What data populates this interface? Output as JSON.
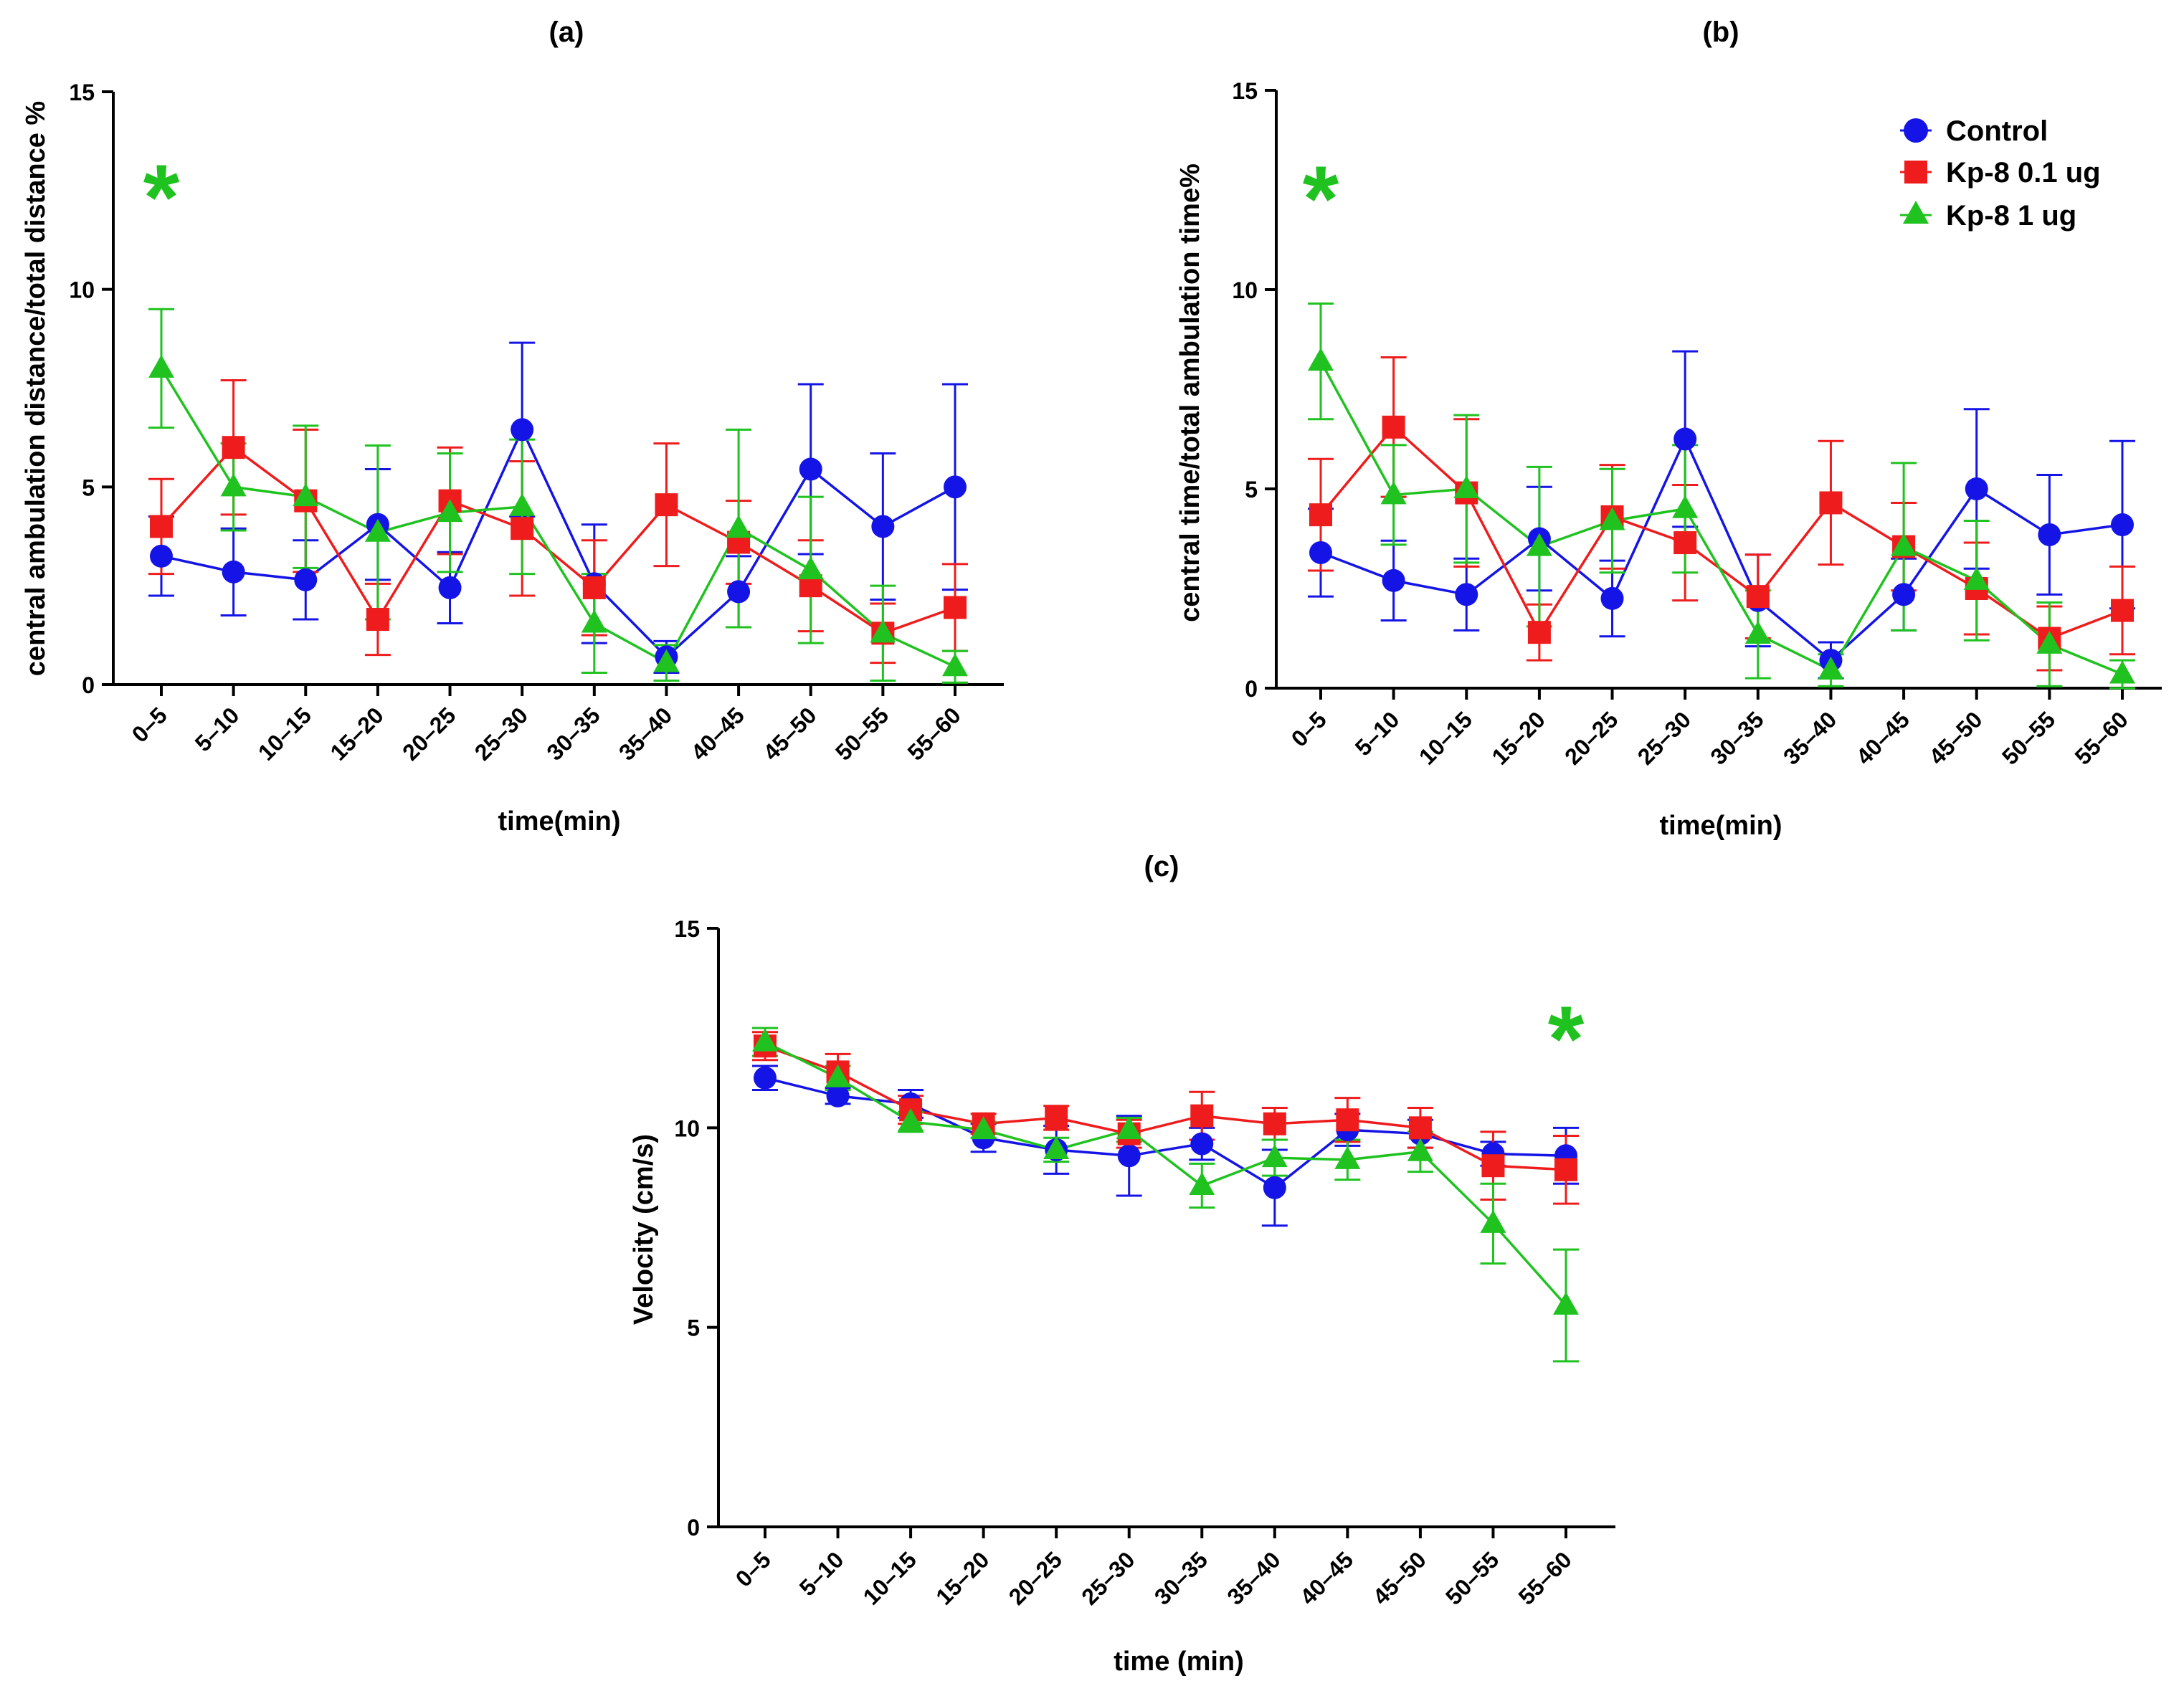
{
  "legend": {
    "entries": [
      {
        "name": "Control",
        "color": "#1414e6",
        "marker": "circle"
      },
      {
        "name": "Kp-8 0.1 ug",
        "color": "#ee1c1c",
        "marker": "square"
      },
      {
        "name": "Kp-8 1 ug",
        "color": "#1fc21f",
        "marker": "triangle"
      }
    ]
  },
  "significance_marker": "*",
  "chart_data": [
    {
      "id": "a",
      "type": "line",
      "title": "(a)",
      "xlabel": "time(min)",
      "ylabel": "central ambulation distance/total distance %",
      "ylim": [
        0,
        15
      ],
      "yticks": [
        "0",
        "5",
        "10",
        "15"
      ],
      "categories": [
        "0–5",
        "5–10",
        "10–15",
        "15–20",
        "20–25",
        "25–30",
        "30–35",
        "35–40",
        "40–45",
        "45–50",
        "50–55",
        "55–60"
      ],
      "series": [
        {
          "name": "Control",
          "color": "#1414e6",
          "marker": "circle",
          "values": [
            3.25,
            2.85,
            2.65,
            4.05,
            2.45,
            6.45,
            2.55,
            0.7,
            2.35,
            5.45,
            4.0,
            5.0
          ],
          "errors": [
            1.0,
            1.1,
            1.0,
            1.4,
            0.9,
            2.2,
            1.5,
            0.4,
            0.9,
            2.15,
            1.85,
            2.6
          ]
        },
        {
          "name": "Kp-8 0.1 ug",
          "color": "#ee1c1c",
          "marker": "square",
          "values": [
            4.0,
            6.0,
            4.65,
            1.65,
            4.65,
            3.95,
            2.45,
            4.55,
            3.6,
            2.5,
            1.3,
            1.95
          ],
          "errors": [
            1.2,
            1.7,
            1.8,
            0.9,
            1.35,
            1.7,
            1.2,
            1.55,
            1.05,
            1.15,
            0.75,
            1.1
          ]
        },
        {
          "name": "Kp-8 1 ug",
          "color": "#1fc21f",
          "marker": "triangle",
          "values": [
            8.0,
            5.0,
            4.75,
            3.85,
            4.35,
            4.5,
            1.55,
            0.55,
            3.95,
            2.9,
            1.3,
            0.45
          ],
          "errors": [
            1.5,
            1.1,
            1.8,
            2.2,
            1.5,
            1.7,
            1.25,
            0.45,
            2.5,
            1.85,
            1.2,
            0.4
          ]
        }
      ],
      "annotations": [
        {
          "text": "*",
          "category": "0–5",
          "color": "#1fc21f"
        }
      ]
    },
    {
      "id": "b",
      "type": "line",
      "title": "(b)",
      "xlabel": "time(min)",
      "ylabel": "central time/total ambulation time%",
      "ylim": [
        0,
        15
      ],
      "yticks": [
        "0",
        "5",
        "10",
        "15"
      ],
      "categories": [
        "0–5",
        "5–10",
        "10–15",
        "15–20",
        "20–25",
        "25–30",
        "30–35",
        "35–40",
        "40–45",
        "45–50",
        "50–55",
        "55–60"
      ],
      "series": [
        {
          "name": "Control",
          "color": "#1414e6",
          "marker": "circle",
          "values": [
            3.4,
            2.7,
            2.35,
            3.75,
            2.25,
            6.25,
            2.2,
            0.7,
            2.35,
            5.0,
            3.85,
            4.1
          ],
          "errors": [
            1.1,
            1.0,
            0.9,
            1.3,
            0.95,
            2.2,
            1.15,
            0.45,
            0.9,
            2.0,
            1.5,
            2.1
          ]
        },
        {
          "name": "Kp-8 0.1 ug",
          "color": "#ee1c1c",
          "marker": "square",
          "values": [
            4.35,
            6.55,
            4.9,
            1.4,
            4.3,
            3.65,
            2.3,
            4.65,
            3.55,
            2.5,
            1.25,
            1.95
          ],
          "errors": [
            1.4,
            1.75,
            1.85,
            0.7,
            1.3,
            1.45,
            1.05,
            1.55,
            1.1,
            1.15,
            0.8,
            1.1
          ]
        },
        {
          "name": "Kp-8 1 ug",
          "color": "#1fc21f",
          "marker": "triangle",
          "values": [
            8.2,
            4.85,
            5.0,
            3.55,
            4.2,
            4.5,
            1.35,
            0.45,
            3.55,
            2.7,
            1.1,
            0.35
          ],
          "errors": [
            1.45,
            1.25,
            1.85,
            2.0,
            1.3,
            1.6,
            1.1,
            0.4,
            2.1,
            1.5,
            1.05,
            0.35
          ]
        }
      ],
      "annotations": [
        {
          "text": "*",
          "category": "0–5",
          "color": "#1fc21f"
        }
      ]
    },
    {
      "id": "c",
      "type": "line",
      "title": "(c)",
      "xlabel": "time (min)",
      "ylabel": "Velocity (cm/s)",
      "ylim": [
        0,
        15
      ],
      "yticks": [
        "0",
        "5",
        "10",
        "15"
      ],
      "categories": [
        "0–5",
        "5–10",
        "10–15",
        "15–20",
        "20–25",
        "25–30",
        "30–35",
        "35–40",
        "40–45",
        "45–50",
        "50–55",
        "55–60"
      ],
      "series": [
        {
          "name": "Control",
          "color": "#1414e6",
          "marker": "circle",
          "values": [
            11.25,
            10.8,
            10.6,
            9.75,
            9.45,
            9.3,
            9.6,
            8.5,
            9.95,
            9.85,
            9.35,
            9.3
          ],
          "errors": [
            0.3,
            0.2,
            0.35,
            0.35,
            0.6,
            1.0,
            0.4,
            0.95,
            0.4,
            0.35,
            0.3,
            0.7
          ]
        },
        {
          "name": "Kp-8 0.1 ug",
          "color": "#ee1c1c",
          "marker": "square",
          "values": [
            12.05,
            11.4,
            10.45,
            10.1,
            10.25,
            9.85,
            10.3,
            10.1,
            10.2,
            10.0,
            9.05,
            8.95
          ],
          "errors": [
            0.35,
            0.45,
            0.35,
            0.25,
            0.3,
            0.35,
            0.6,
            0.4,
            0.55,
            0.5,
            0.85,
            0.85
          ]
        },
        {
          "name": "Kp-8 1 ug",
          "color": "#1fc21f",
          "marker": "triangle",
          "values": [
            12.15,
            11.25,
            10.15,
            9.95,
            9.45,
            9.95,
            8.55,
            9.25,
            9.2,
            9.4,
            7.6,
            5.55
          ],
          "errors": [
            0.35,
            0.3,
            0.25,
            0.2,
            0.3,
            0.3,
            0.55,
            0.45,
            0.5,
            0.5,
            1.0,
            1.4
          ]
        }
      ],
      "annotations": [
        {
          "text": "*",
          "category": "55–60",
          "color": "#1fc21f"
        }
      ]
    }
  ]
}
